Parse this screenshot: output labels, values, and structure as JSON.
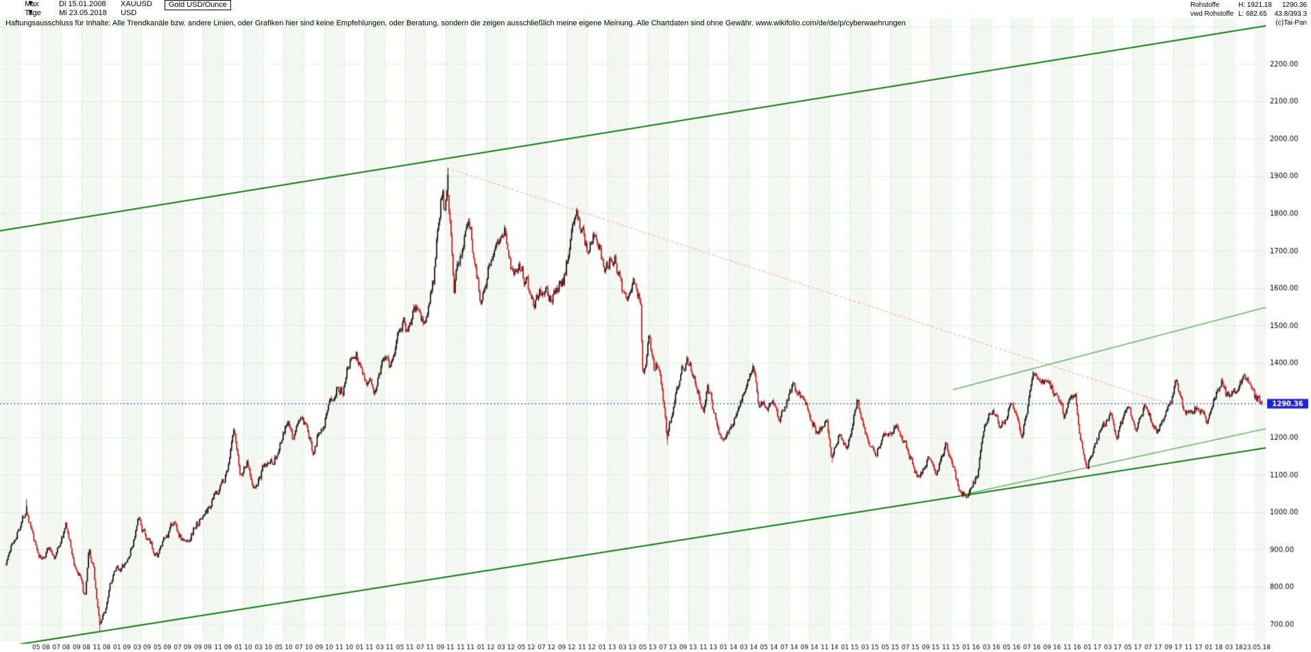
{
  "icons": {
    "dropdown": "▼"
  },
  "header": {
    "range_selector": "Max",
    "start_date": "Di 15.01.2008",
    "symbol": "XAUUSD",
    "instrument_name": "Gold USD/Ounce",
    "timeframe": "Tage",
    "end_date": "Mi 23.05.2018",
    "currency": "USD",
    "category": "Rohstoffe",
    "high_label": "H: 1921.18",
    "last_price": "1290.36",
    "source": "vwd Rohstoffe",
    "low_label": "L: 682.65",
    "stats": "43.8/393.3",
    "copyright": "(c)Tai-Pan"
  },
  "disclaimer": "Haftungsausschluss für Inhalte: Alle Trendkanäle bzw. andere Linien, oder Grafiken hier sind keine Empfehlungen, oder Beratung, sondern die zeigen ausschließlich meine eigene Meinung. Alle Chartdaten sind ohne Gewähr.  www.wikifolio.com/de/de/p/cyberwaehrungen",
  "chart_data": {
    "type": "candlestick",
    "instrument": "Gold USD/Ounce (XAUUSD), Tage",
    "xlim_decimal_years": [
      2008.04,
      2018.4
    ],
    "ylim": [
      655,
      2305
    ],
    "high": 1921.18,
    "low": 682.65,
    "last_price": 1290.36,
    "last_price_label": "1290.36",
    "y_ticks": [
      "2200.00",
      "2100.00",
      "2000.00",
      "1900.00",
      "1800.00",
      "1700.00",
      "1600.00",
      "1500.00",
      "1400.00",
      "1200.00",
      "1100.00",
      "1000.00",
      "900.00",
      "800.00",
      "700.00"
    ],
    "x_ticks": [
      "05 08",
      "07 08",
      "09 08",
      "11 08",
      "01 09",
      "03 09",
      "05 09",
      "07 09",
      "09 09",
      "11 09",
      "01 10",
      "03 10",
      "05 10",
      "07 10",
      "09 10",
      "11 10",
      "01 11",
      "03 11",
      "05 11",
      "07 11",
      "09 11",
      "11 11",
      "01 12",
      "03 12",
      "05 12",
      "07 12",
      "09 12",
      "11 12",
      "01 13",
      "03 13",
      "05 13",
      "07 13",
      "09 13",
      "11 13",
      "01 14",
      "03 14",
      "05 14",
      "07 14",
      "09 14",
      "11 14",
      "01 15",
      "03 15",
      "05 15",
      "07 15",
      "09 15",
      "11 15",
      "01 16",
      "03 16",
      "05 16",
      "07 16",
      "09 16",
      "11 16",
      "01 17",
      "03 17",
      "05 17",
      "07 17",
      "09 17",
      "11 17",
      "01 18",
      "03 18"
    ],
    "x_end_label": "23.05.18",
    "monthly_closes": [
      [
        "2008-01-15",
        862
      ],
      [
        "2008-02-01",
        905
      ],
      [
        "2008-02-20",
        948
      ],
      [
        "2008-03-17",
        1012
      ],
      [
        "2008-04-10",
        915
      ],
      [
        "2008-05-02",
        870
      ],
      [
        "2008-05-20",
        905
      ],
      [
        "2008-06-12",
        882
      ],
      [
        "2008-07-15",
        965
      ],
      [
        "2008-08-08",
        862
      ],
      [
        "2008-08-25",
        825
      ],
      [
        "2008-09-11",
        765
      ],
      [
        "2008-09-22",
        890
      ],
      [
        "2008-10-06",
        845
      ],
      [
        "2008-10-24",
        700
      ],
      [
        "2008-11-10",
        735
      ],
      [
        "2008-11-25",
        815
      ],
      [
        "2008-12-15",
        845
      ],
      [
        "2009-01-12",
        858
      ],
      [
        "2009-01-28",
        898
      ],
      [
        "2009-02-20",
        978
      ],
      [
        "2009-03-16",
        922
      ],
      [
        "2009-04-15",
        885
      ],
      [
        "2009-05-25",
        952
      ],
      [
        "2009-06-03",
        978
      ],
      [
        "2009-06-25",
        932
      ],
      [
        "2009-07-10",
        915
      ],
      [
        "2009-08-06",
        960
      ],
      [
        "2009-09-10",
        1000
      ],
      [
        "2009-10-12",
        1052
      ],
      [
        "2009-11-10",
        1105
      ],
      [
        "2009-12-02",
        1210
      ],
      [
        "2009-12-21",
        1092
      ],
      [
        "2010-01-11",
        1135
      ],
      [
        "2010-02-05",
        1062
      ],
      [
        "2010-03-02",
        1118
      ],
      [
        "2010-04-12",
        1155
      ],
      [
        "2010-05-12",
        1238
      ],
      [
        "2010-05-26",
        1195
      ],
      [
        "2010-06-21",
        1256
      ],
      [
        "2010-07-27",
        1165
      ],
      [
        "2010-08-20",
        1228
      ],
      [
        "2010-09-20",
        1285
      ],
      [
        "2010-10-08",
        1348
      ],
      [
        "2010-10-25",
        1325
      ],
      [
        "2010-11-09",
        1405
      ],
      [
        "2010-12-06",
        1420
      ],
      [
        "2011-01-27",
        1315
      ],
      [
        "2011-02-21",
        1398
      ],
      [
        "2011-03-07",
        1432
      ],
      [
        "2011-03-17",
        1395
      ],
      [
        "2011-04-28",
        1525
      ],
      [
        "2011-05-06",
        1480
      ],
      [
        "2011-06-01",
        1542
      ],
      [
        "2011-06-27",
        1498
      ],
      [
        "2011-07-26",
        1618
      ],
      [
        "2011-08-10",
        1785
      ],
      [
        "2011-08-23",
        1890
      ],
      [
        "2011-08-26",
        1790
      ],
      [
        "2011-09-05",
        1900
      ],
      [
        "2011-09-15",
        1780
      ],
      [
        "2011-09-26",
        1600
      ],
      [
        "2011-10-11",
        1670
      ],
      [
        "2011-11-08",
        1795
      ],
      [
        "2011-11-25",
        1685
      ],
      [
        "2011-12-15",
        1570
      ],
      [
        "2012-01-26",
        1720
      ],
      [
        "2012-02-27",
        1775
      ],
      [
        "2012-03-14",
        1645
      ],
      [
        "2012-04-12",
        1660
      ],
      [
        "2012-05-22",
        1560
      ],
      [
        "2012-06-11",
        1595
      ],
      [
        "2012-07-12",
        1575
      ],
      [
        "2012-08-20",
        1620
      ],
      [
        "2012-09-21",
        1775
      ],
      [
        "2012-10-04",
        1790
      ],
      [
        "2012-11-05",
        1680
      ],
      [
        "2012-11-23",
        1750
      ],
      [
        "2012-12-20",
        1660
      ],
      [
        "2013-01-22",
        1690
      ],
      [
        "2013-02-20",
        1580
      ],
      [
        "2013-03-21",
        1612
      ],
      [
        "2013-04-09",
        1575
      ],
      [
        "2013-04-16",
        1360
      ],
      [
        "2013-05-03",
        1470
      ],
      [
        "2013-05-20",
        1385
      ],
      [
        "2013-06-03",
        1410
      ],
      [
        "2013-06-28",
        1195
      ],
      [
        "2013-07-23",
        1330
      ],
      [
        "2013-08-27",
        1418
      ],
      [
        "2013-09-18",
        1365
      ],
      [
        "2013-10-15",
        1275
      ],
      [
        "2013-10-28",
        1350
      ],
      [
        "2013-11-25",
        1240
      ],
      [
        "2013-12-19",
        1190
      ],
      [
        "2014-01-23",
        1262
      ],
      [
        "2014-02-25",
        1340
      ],
      [
        "2014-03-14",
        1382
      ],
      [
        "2014-04-01",
        1280
      ],
      [
        "2014-05-12",
        1295
      ],
      [
        "2014-06-03",
        1243
      ],
      [
        "2014-07-10",
        1338
      ],
      [
        "2014-08-08",
        1312
      ],
      [
        "2014-09-22",
        1215
      ],
      [
        "2014-10-21",
        1248
      ],
      [
        "2014-11-07",
        1142
      ],
      [
        "2014-12-01",
        1218
      ],
      [
        "2014-12-22",
        1178
      ],
      [
        "2015-01-22",
        1300
      ],
      [
        "2015-02-23",
        1200
      ],
      [
        "2015-03-17",
        1148
      ],
      [
        "2015-04-10",
        1207
      ],
      [
        "2015-05-18",
        1227
      ],
      [
        "2015-06-15",
        1180
      ],
      [
        "2015-07-24",
        1086
      ],
      [
        "2015-08-24",
        1154
      ],
      [
        "2015-09-15",
        1105
      ],
      [
        "2015-10-15",
        1184
      ],
      [
        "2015-11-23",
        1068
      ],
      [
        "2015-12-03",
        1052
      ],
      [
        "2015-12-17",
        1050
      ],
      [
        "2016-01-20",
        1100
      ],
      [
        "2016-02-11",
        1248
      ],
      [
        "2016-03-10",
        1268
      ],
      [
        "2016-03-28",
        1218
      ],
      [
        "2016-05-02",
        1292
      ],
      [
        "2016-05-30",
        1205
      ],
      [
        "2016-07-06",
        1366
      ],
      [
        "2016-08-17",
        1348
      ],
      [
        "2016-09-15",
        1312
      ],
      [
        "2016-10-07",
        1252
      ],
      [
        "2016-11-09",
        1330
      ],
      [
        "2016-11-25",
        1185
      ],
      [
        "2016-12-15",
        1128
      ],
      [
        "2017-01-23",
        1215
      ],
      [
        "2017-02-24",
        1257
      ],
      [
        "2017-03-10",
        1200
      ],
      [
        "2017-04-17",
        1288
      ],
      [
        "2017-05-09",
        1216
      ],
      [
        "2017-06-06",
        1295
      ],
      [
        "2017-07-10",
        1212
      ],
      [
        "2017-08-31",
        1322
      ],
      [
        "2017-09-08",
        1350
      ],
      [
        "2017-10-05",
        1268
      ],
      [
        "2017-11-15",
        1282
      ],
      [
        "2017-12-12",
        1242
      ],
      [
        "2018-01-25",
        1360
      ],
      [
        "2018-02-08",
        1312
      ],
      [
        "2018-03-01",
        1318
      ],
      [
        "2018-03-27",
        1352
      ],
      [
        "2018-04-18",
        1350
      ],
      [
        "2018-05-01",
        1308
      ],
      [
        "2018-05-21",
        1293
      ],
      [
        "2018-05-23",
        1290.36
      ]
    ],
    "extremes": [
      [
        "2008-03-17",
        1033.9,
        "high"
      ],
      [
        "2008-10-24",
        682.65,
        "low"
      ],
      [
        "2011-09-06",
        1921.18,
        "high"
      ],
      [
        "2013-06-28",
        1180.5,
        "low"
      ],
      [
        "2014-11-07",
        1131.5,
        "low"
      ],
      [
        "2015-12-03",
        1046.2,
        "low"
      ],
      [
        "2016-07-06",
        1375.3,
        "high"
      ],
      [
        "2016-12-15",
        1122.9,
        "low"
      ]
    ],
    "trendlines": [
      {
        "name": "upper-channel-line",
        "color": "#0b7a0b",
        "width": 2,
        "points": [
          [
            2007.99,
            1753
          ],
          [
            2018.45,
            2303
          ]
        ]
      },
      {
        "name": "lower-channel-line",
        "color": "#0b7a0b",
        "width": 2,
        "points": [
          [
            2007.99,
            638
          ],
          [
            2018.45,
            1173
          ]
        ]
      },
      {
        "name": "inner-resistance-line",
        "color": "#63b063",
        "width": 1.5,
        "points": [
          [
            2015.85,
            1328
          ],
          [
            2018.45,
            1550
          ]
        ]
      },
      {
        "name": "inner-support-line",
        "color": "#63b063",
        "width": 1.5,
        "points": [
          [
            2015.92,
            1046
          ],
          [
            2018.45,
            1225
          ]
        ]
      },
      {
        "name": "peak-downtrend-line",
        "color": "#ff9a9a",
        "width": 1,
        "dash": [
          4,
          3
        ],
        "points": [
          [
            2011.683,
            1921.18
          ],
          [
            2017.62,
            1290
          ]
        ]
      }
    ],
    "last_price_line": {
      "value": 1290.36,
      "color": "#2222cc"
    },
    "colors": {
      "up": "#1a1a1a",
      "down": "#cc2020",
      "grid": "#bcd6bc",
      "band": "#f3f6f1",
      "axis_text": "#000000",
      "badge_text": "#ffffff"
    },
    "legend_position": "none",
    "grid": true
  }
}
